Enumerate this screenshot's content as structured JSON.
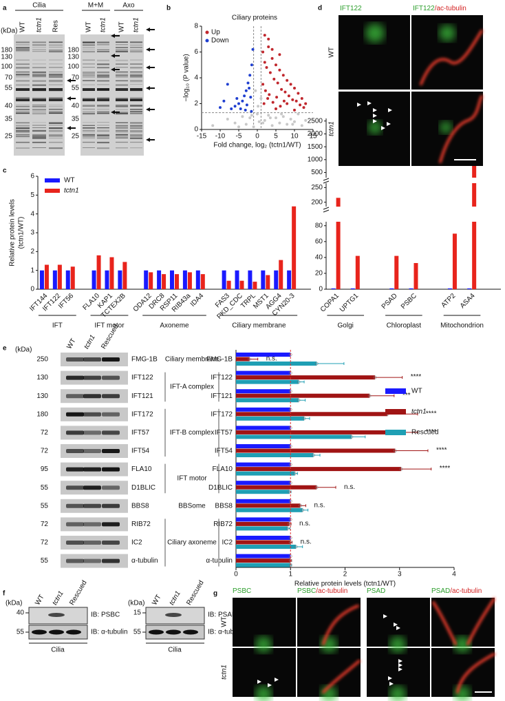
{
  "panel_letters": [
    "a",
    "b",
    "c",
    "d",
    "e",
    "f",
    "g"
  ],
  "panel_a": {
    "header_cilia": "Cilia",
    "lanes_left": [
      "WT",
      "tctn1",
      "Res"
    ],
    "header_mm": "M+M",
    "header_axo": "Axo",
    "lanes_right": [
      "WT",
      "tctn1",
      "WT",
      "tctn1"
    ],
    "unit": "(kDa)",
    "markers": [
      180,
      130,
      100,
      70,
      55,
      40,
      35,
      25
    ]
  },
  "panel_d": {
    "columns": [
      [
        "IFT122"
      ],
      [
        "IFT122",
        "/ac-tubulin"
      ]
    ],
    "rows": [
      "WT",
      "tctn1"
    ]
  },
  "blots_e": {
    "unit": "(kDa)",
    "header": [
      "WT",
      "tctn1",
      "Rescued"
    ],
    "sizes": [
      250,
      130,
      130,
      180,
      72,
      72,
      95,
      55,
      55,
      72,
      72,
      55
    ],
    "proteins": [
      "FMG-1B",
      "IFT122",
      "IFT121",
      "IFT172",
      "IFT57",
      "IFT54",
      "FLA10",
      "D1BLIC",
      "BBS8",
      "RIB72",
      "IC2",
      "α-tubulin"
    ],
    "groups": [
      "Ciliary membrane",
      "IFT-A complex",
      "IFT-B complex",
      "IFT motor",
      "BBSome",
      "Ciliary axoneme"
    ]
  },
  "panel_f": {
    "left": {
      "unit": "(kDa)",
      "markers": [
        40,
        55
      ],
      "lanes": [
        "WT",
        "tctn1",
        "Rescued"
      ],
      "blots": [
        "IB: PSBC",
        "IB: α-tubulin"
      ],
      "sample": "Cilia"
    },
    "right": {
      "unit": "(kDa)",
      "markers": [
        15,
        55
      ],
      "lanes": [
        "WT",
        "tctn1",
        "Rescued"
      ],
      "blots": [
        "IB: PSAD",
        "IB: α-tubulin"
      ],
      "sample": "Cilia"
    }
  },
  "panel_g": {
    "columns": [
      [
        "PSBC"
      ],
      [
        "PSBC",
        "/ac-tubulin"
      ],
      [
        "PSAD"
      ],
      [
        "PSAD",
        "/ac-tubulin"
      ]
    ],
    "rows": [
      "WT",
      "tctn1"
    ]
  },
  "chart_data": [
    {
      "type": "scatter",
      "title": "Ciliary proteins",
      "xlabel": "Fold change, log₂ (tctn1/WT)",
      "ylabel": "−log₁₀ (P value)",
      "xlim": [
        -15,
        15
      ],
      "ylim": [
        0,
        8
      ],
      "xticks": [
        -15,
        -10,
        -5,
        0,
        5,
        10,
        15
      ],
      "yticks": [
        0,
        2,
        4,
        6,
        8
      ],
      "threshold_y": 1.3,
      "threshold_x": [
        -1,
        1
      ],
      "legend": "upper-left",
      "series": [
        {
          "name": "Up",
          "color": "#c0272d",
          "x": [
            2,
            3,
            1.5,
            4,
            5,
            6,
            7,
            8,
            9,
            10,
            11,
            12,
            13,
            2.5,
            3.5,
            4.5,
            5.5,
            6.5,
            7.5,
            8.5,
            9.5,
            10.5,
            11.5,
            12.5,
            2.2,
            3.2,
            1.8,
            2.8,
            4.2,
            5.2,
            6.2,
            7.2,
            3,
            2,
            5,
            1.5,
            4,
            6,
            8,
            10
          ],
          "values": [
            7.3,
            7.0,
            6.0,
            5.5,
            5.0,
            4.6,
            4.2,
            3.8,
            3.5,
            3.2,
            2.8,
            2.4,
            2.0,
            4.8,
            4.4,
            3.9,
            3.6,
            3.1,
            2.9,
            2.6,
            2.3,
            2.2,
            1.9,
            1.7,
            3.0,
            2.7,
            2.0,
            2.4,
            2.1,
            2.5,
            1.8,
            2.2,
            6.4,
            5.2,
            1.6,
            3.5,
            6.2,
            5.8,
            2.0,
            1.5
          ]
        },
        {
          "name": "Down",
          "color": "#1f3fd0",
          "x": [
            -1.5,
            -2,
            -2.5,
            -3,
            -3.5,
            -4,
            -5,
            -6,
            -7,
            -8,
            -9,
            -10,
            -1.8,
            -2.2,
            -2.8,
            -1.2,
            -3.2,
            -4.5,
            -5.5,
            -1.6
          ],
          "values": [
            5.0,
            4.2,
            3.6,
            3.0,
            2.6,
            2.2,
            2.0,
            1.8,
            1.6,
            3.5,
            2.2,
            1.7,
            2.5,
            3.2,
            1.9,
            6.2,
            1.5,
            1.6,
            2.4,
            1.4
          ]
        },
        {
          "color": "#c8c8c8",
          "x": [
            -12,
            -8,
            -6,
            -4,
            -3,
            -2,
            -1,
            0,
            0.5,
            1,
            2,
            3,
            4,
            5,
            6,
            7,
            8,
            9,
            10,
            11,
            12,
            13,
            -0.5,
            0.2,
            -1.5,
            1.5,
            -5,
            3.5,
            6.5,
            9.5
          ],
          "values": [
            0.3,
            0.8,
            0.5,
            1.0,
            0.4,
            0.9,
            0.2,
            1.2,
            0.6,
            2.4,
            0.7,
            1.1,
            0.3,
            0.9,
            0.5,
            1.0,
            0.4,
            0.8,
            0.6,
            1.2,
            0.3,
            0.7,
            3.0,
            1.8,
            1.1,
            0.5,
            0.2,
            0.9,
            1.2,
            0.4
          ]
        }
      ]
    },
    {
      "type": "bar",
      "ylabel": [
        "Relative protein levels",
        "(tctn1/WT)"
      ],
      "ylim": [
        0,
        6
      ],
      "yticks": [
        0,
        1,
        2,
        3,
        4,
        5,
        6
      ],
      "legend": "upper-left",
      "groups": [
        {
          "label": "IFT",
          "categories": [
            "IFT144",
            "IFT122",
            "IFT56"
          ]
        },
        {
          "label": "IFT motor",
          "categories": [
            "FLA10",
            "KAP1",
            "TCTEX2B"
          ]
        },
        {
          "label": "Axoneme",
          "categories": [
            "ODA12",
            "DRC8",
            "RSP11",
            "RIB43a",
            "IDA4"
          ]
        },
        {
          "label": "Ciliary membrane",
          "categories": [
            "FAS3",
            "PKD_CDC",
            "TRPL",
            "MST1",
            "AGG4",
            "CYN20-3"
          ]
        }
      ],
      "series": [
        {
          "name": "WT",
          "color": "#1a1aff",
          "values": [
            1,
            1,
            1,
            1,
            1,
            1,
            1,
            1,
            1,
            1,
            1,
            1,
            1,
            1,
            1,
            1,
            1
          ]
        },
        {
          "name": "tctn1",
          "color": "#e8241c",
          "values": [
            1.3,
            1.3,
            1.2,
            1.8,
            1.7,
            1.45,
            0.9,
            0.8,
            0.8,
            0.9,
            0.8,
            0.45,
            0.45,
            0.4,
            0.75,
            1.55,
            4.4
          ]
        }
      ]
    },
    {
      "type": "bar",
      "groups": [
        {
          "label": "Golgi",
          "categories": [
            "COPA1",
            "UPTG1"
          ]
        },
        {
          "label": "Chloroplast",
          "categories": [
            "PSAD",
            "PSBC"
          ]
        },
        {
          "label": "Mitochondrion",
          "categories": [
            "ATP2",
            "ASA4"
          ]
        }
      ],
      "segments": [
        {
          "ylim": [
            0,
            85
          ],
          "yticks": [
            0,
            20,
            40,
            60,
            80
          ]
        },
        {
          "ylim": [
            185,
            265
          ],
          "yticks": [
            200,
            250
          ]
        },
        {
          "ylim": [
            300,
            2600
          ],
          "yticks": [
            500,
            1000,
            1500,
            2000,
            2500
          ]
        }
      ],
      "series": [
        {
          "color": "#1a1aff",
          "values": [
            1,
            1,
            1,
            1,
            1,
            1
          ]
        },
        {
          "color": "#e8241c",
          "values": [
            215,
            42,
            42,
            33,
            70,
            1800
          ]
        }
      ]
    },
    {
      "type": "hbar",
      "xlabel": "Relative protein levels (tctn1/WT)",
      "xlim": [
        0,
        4
      ],
      "xticks": [
        0,
        1,
        2,
        3,
        4
      ],
      "reference_x": 1,
      "legend": "right",
      "categories": [
        "FMG-1B",
        "IFT122",
        "IFT121",
        "IFT172",
        "IFT57",
        "IFT54",
        "FLA10",
        "D1BLIC",
        "BBS8",
        "RIB72",
        "IC2",
        "α-tubulin"
      ],
      "series": [
        {
          "name": "WT",
          "color": "#1a1aff",
          "values": [
            1,
            1,
            1,
            1,
            1,
            1,
            1,
            1,
            1,
            1,
            1,
            1
          ]
        },
        {
          "name": "tctn1",
          "color": "#a01414",
          "values": [
            0.25,
            2.55,
            2.45,
            2.78,
            2.98,
            2.92,
            3.03,
            1.48,
            1.18,
            0.98,
            1.0,
            1.0
          ],
          "errors": [
            0.15,
            0.5,
            0.45,
            0.55,
            0.35,
            0.6,
            0.55,
            0.35,
            0.1,
            0.03,
            0.03,
            0.02
          ]
        },
        {
          "name": "Rescued",
          "color": "#1f9fb4",
          "values": [
            1.48,
            1.15,
            1.15,
            1.25,
            2.12,
            1.42,
            1.08,
            0.98,
            1.22,
            0.95,
            1.1,
            1.0
          ],
          "errors": [
            0.5,
            0.1,
            0.12,
            0.1,
            0.25,
            0.12,
            0.05,
            0.03,
            0.1,
            0.04,
            0.12,
            0.02
          ]
        }
      ],
      "significance": [
        "n.s.",
        "****",
        "***",
        "****",
        "****",
        "****",
        "****",
        "n.s.",
        "n.s.",
        "n.s.",
        "n.s.",
        null
      ]
    }
  ]
}
